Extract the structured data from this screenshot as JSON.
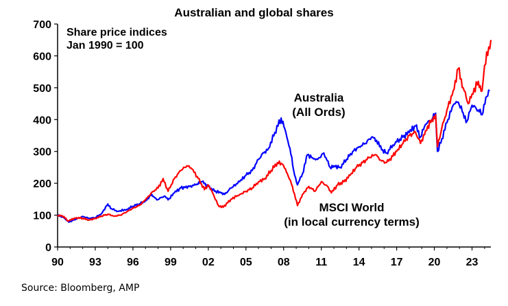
{
  "chart_data": {
    "type": "line",
    "title": "Australian and global shares",
    "subtitle": "Share price indices\nJan 1990 = 100",
    "source": "Source: Bloomberg, AMP",
    "xlim": [
      1990,
      2024.5
    ],
    "ylim": [
      0,
      700
    ],
    "x_ticks": [
      1990,
      1993,
      1996,
      1999,
      2002,
      2005,
      2008,
      2011,
      2014,
      2017,
      2020,
      2023
    ],
    "x_tick_labels": [
      "90",
      "93",
      "96",
      "99",
      "02",
      "05",
      "08",
      "11",
      "14",
      "17",
      "20",
      "23"
    ],
    "y_ticks": [
      0,
      100,
      200,
      300,
      400,
      500,
      600,
      700
    ],
    "y_tick_labels": [
      "0",
      "100",
      "200",
      "300",
      "400",
      "500",
      "600",
      "700"
    ],
    "grid": false,
    "series": [
      {
        "name": "Australia\n(All Ords)",
        "color": "#0000ff",
        "points": [
          [
            1990.0,
            100
          ],
          [
            1990.5,
            92
          ],
          [
            1990.9,
            78
          ],
          [
            1991.5,
            88
          ],
          [
            1992.0,
            96
          ],
          [
            1992.5,
            90
          ],
          [
            1993.0,
            92
          ],
          [
            1993.5,
            105
          ],
          [
            1994.0,
            135
          ],
          [
            1994.3,
            120
          ],
          [
            1994.8,
            112
          ],
          [
            1995.5,
            118
          ],
          [
            1996.0,
            128
          ],
          [
            1996.5,
            135
          ],
          [
            1997.0,
            145
          ],
          [
            1997.5,
            165
          ],
          [
            1997.9,
            148
          ],
          [
            1998.5,
            160
          ],
          [
            1998.8,
            148
          ],
          [
            1999.3,
            170
          ],
          [
            1999.8,
            185
          ],
          [
            2000.5,
            190
          ],
          [
            2001.0,
            195
          ],
          [
            2001.5,
            205
          ],
          [
            2002.0,
            190
          ],
          [
            2002.5,
            175
          ],
          [
            2003.0,
            170
          ],
          [
            2003.3,
            165
          ],
          [
            2003.8,
            185
          ],
          [
            2004.5,
            205
          ],
          [
            2005.0,
            225
          ],
          [
            2005.5,
            240
          ],
          [
            2006.0,
            275
          ],
          [
            2006.4,
            295
          ],
          [
            2006.8,
            310
          ],
          [
            2007.3,
            360
          ],
          [
            2007.8,
            405
          ],
          [
            2008.1,
            370
          ],
          [
            2008.5,
            310
          ],
          [
            2008.8,
            240
          ],
          [
            2009.1,
            195
          ],
          [
            2009.5,
            230
          ],
          [
            2009.9,
            290
          ],
          [
            2010.3,
            280
          ],
          [
            2010.7,
            275
          ],
          [
            2011.2,
            295
          ],
          [
            2011.7,
            250
          ],
          [
            2012.0,
            255
          ],
          [
            2012.5,
            250
          ],
          [
            2013.0,
            275
          ],
          [
            2013.5,
            300
          ],
          [
            2014.0,
            315
          ],
          [
            2014.5,
            325
          ],
          [
            2015.0,
            345
          ],
          [
            2015.4,
            335
          ],
          [
            2015.8,
            305
          ],
          [
            2016.2,
            295
          ],
          [
            2016.7,
            320
          ],
          [
            2017.0,
            330
          ],
          [
            2017.5,
            345
          ],
          [
            2018.0,
            360
          ],
          [
            2018.5,
            380
          ],
          [
            2018.9,
            345
          ],
          [
            2019.3,
            385
          ],
          [
            2019.8,
            400
          ],
          [
            2020.1,
            420
          ],
          [
            2020.25,
            300
          ],
          [
            2020.6,
            340
          ],
          [
            2021.0,
            390
          ],
          [
            2021.5,
            445
          ],
          [
            2021.9,
            455
          ],
          [
            2022.3,
            420
          ],
          [
            2022.6,
            395
          ],
          [
            2023.0,
            445
          ],
          [
            2023.5,
            430
          ],
          [
            2023.8,
            415
          ],
          [
            2024.1,
            470
          ],
          [
            2024.4,
            490
          ]
        ]
      },
      {
        "name": "MSCI World\n(in local currency terms)",
        "color": "#ff0000",
        "points": [
          [
            1990.0,
            100
          ],
          [
            1990.5,
            96
          ],
          [
            1990.8,
            82
          ],
          [
            1991.5,
            92
          ],
          [
            1992.0,
            90
          ],
          [
            1992.5,
            85
          ],
          [
            1993.0,
            90
          ],
          [
            1993.5,
            97
          ],
          [
            1994.0,
            103
          ],
          [
            1994.5,
            97
          ],
          [
            1995.0,
            100
          ],
          [
            1995.5,
            110
          ],
          [
            1996.0,
            122
          ],
          [
            1996.5,
            130
          ],
          [
            1997.0,
            148
          ],
          [
            1997.6,
            175
          ],
          [
            1998.0,
            185
          ],
          [
            1998.4,
            215
          ],
          [
            1998.8,
            175
          ],
          [
            1999.3,
            215
          ],
          [
            1999.8,
            240
          ],
          [
            2000.3,
            255
          ],
          [
            2000.7,
            245
          ],
          [
            2001.2,
            215
          ],
          [
            2001.7,
            180
          ],
          [
            2002.0,
            195
          ],
          [
            2002.4,
            165
          ],
          [
            2002.8,
            130
          ],
          [
            2003.2,
            125
          ],
          [
            2003.8,
            150
          ],
          [
            2004.5,
            165
          ],
          [
            2005.0,
            175
          ],
          [
            2005.5,
            185
          ],
          [
            2006.0,
            205
          ],
          [
            2006.5,
            215
          ],
          [
            2007.0,
            240
          ],
          [
            2007.5,
            265
          ],
          [
            2007.9,
            260
          ],
          [
            2008.3,
            230
          ],
          [
            2008.7,
            190
          ],
          [
            2009.1,
            130
          ],
          [
            2009.5,
            165
          ],
          [
            2010.0,
            190
          ],
          [
            2010.5,
            175
          ],
          [
            2011.0,
            205
          ],
          [
            2011.5,
            190
          ],
          [
            2011.8,
            170
          ],
          [
            2012.3,
            195
          ],
          [
            2012.8,
            205
          ],
          [
            2013.3,
            225
          ],
          [
            2013.8,
            250
          ],
          [
            2014.3,
            265
          ],
          [
            2014.8,
            280
          ],
          [
            2015.3,
            290
          ],
          [
            2015.8,
            270
          ],
          [
            2016.2,
            265
          ],
          [
            2016.7,
            285
          ],
          [
            2017.0,
            300
          ],
          [
            2017.5,
            325
          ],
          [
            2018.0,
            350
          ],
          [
            2018.5,
            360
          ],
          [
            2018.9,
            325
          ],
          [
            2019.3,
            365
          ],
          [
            2019.8,
            400
          ],
          [
            2020.1,
            415
          ],
          [
            2020.25,
            315
          ],
          [
            2020.6,
            375
          ],
          [
            2021.0,
            430
          ],
          [
            2021.5,
            490
          ],
          [
            2021.9,
            560
          ],
          [
            2022.3,
            500
          ],
          [
            2022.7,
            450
          ],
          [
            2023.0,
            480
          ],
          [
            2023.5,
            520
          ],
          [
            2023.8,
            490
          ],
          [
            2024.0,
            570
          ],
          [
            2024.5,
            650
          ]
        ]
      }
    ]
  }
}
